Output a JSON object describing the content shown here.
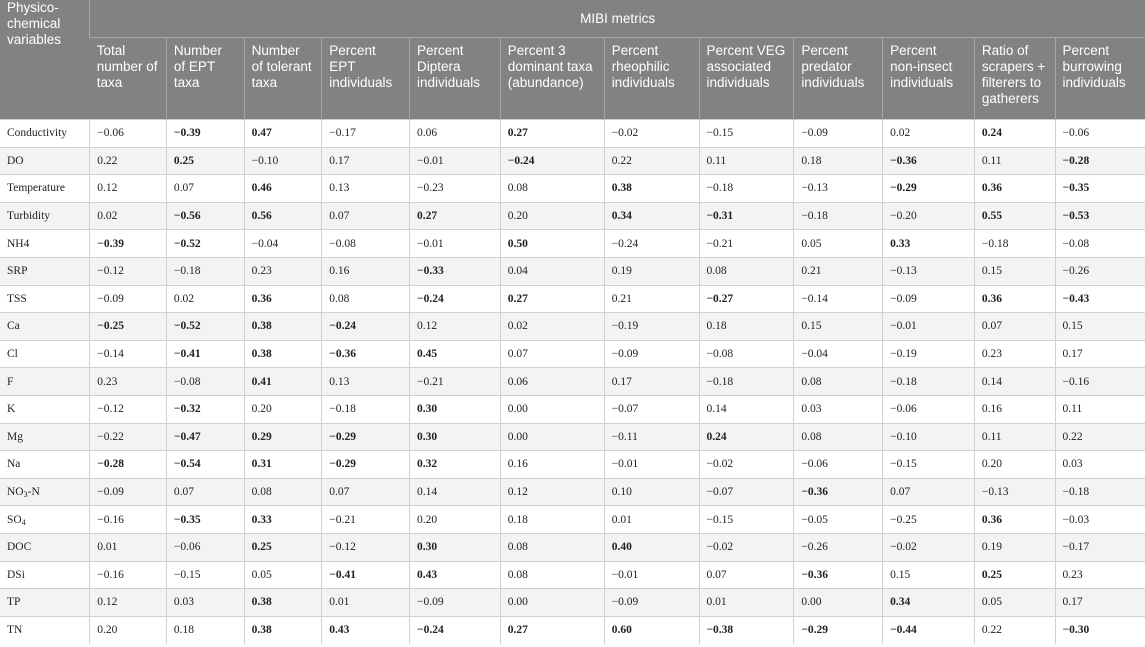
{
  "table": {
    "group_header": "MIBI metrics",
    "row_header": "Physico-chemical variables",
    "columns": [
      "Total number of taxa",
      "Number of EPT taxa",
      "Number of tolerant taxa",
      "Percent EPT individuals",
      "Percent Diptera individuals",
      "Percent 3 dominant taxa (abundance)",
      "Percent rheophilic individuals",
      "Percent VEG associated individuals",
      "Percent predator individuals",
      "Percent non-insect individuals",
      "Ratio of scrapers + filterers to gatherers",
      "Percent burrowing individuals"
    ],
    "rows": [
      {
        "variable": "Conductivity",
        "values": [
          "−0.06",
          "−0.39",
          "0.47",
          "−0.17",
          "0.06",
          "0.27",
          "−0.02",
          "−0.15",
          "−0.09",
          "0.02",
          "0.24",
          "−0.06"
        ],
        "bold": [
          false,
          true,
          true,
          false,
          false,
          true,
          false,
          false,
          false,
          false,
          true,
          false
        ]
      },
      {
        "variable": "DO",
        "values": [
          "0.22",
          "0.25",
          "−0.10",
          "0.17",
          "−0.01",
          "−0.24",
          "0.22",
          "0.11",
          "0.18",
          "−0.36",
          "0.11",
          "−0.28"
        ],
        "bold": [
          false,
          true,
          false,
          false,
          false,
          true,
          false,
          false,
          false,
          true,
          false,
          true
        ]
      },
      {
        "variable": "Temperature",
        "values": [
          "0.12",
          "0.07",
          "0.46",
          "0.13",
          "−0.23",
          "0.08",
          "0.38",
          "−0.18",
          "−0.13",
          "−0.29",
          "0.36",
          "−0.35"
        ],
        "bold": [
          false,
          false,
          true,
          false,
          false,
          false,
          true,
          false,
          false,
          true,
          true,
          true
        ]
      },
      {
        "variable": "Turbidity",
        "values": [
          "0.02",
          "−0.56",
          "0.56",
          "0.07",
          "0.27",
          "0.20",
          "0.34",
          "−0.31",
          "−0.18",
          "−0.20",
          "0.55",
          "−0.53"
        ],
        "bold": [
          false,
          true,
          true,
          false,
          true,
          false,
          true,
          true,
          false,
          false,
          true,
          true
        ]
      },
      {
        "variable": "NH4",
        "values": [
          "−0.39",
          "−0.52",
          "−0.04",
          "−0.08",
          "−0.01",
          "0.50",
          "−0.24",
          "−0.21",
          "0.05",
          "0.33",
          "−0.18",
          "−0.08"
        ],
        "bold": [
          true,
          true,
          false,
          false,
          false,
          true,
          false,
          false,
          false,
          true,
          false,
          false
        ]
      },
      {
        "variable": "SRP",
        "values": [
          "−0.12",
          "−0.18",
          "0.23",
          "0.16",
          "−0.33",
          "0.04",
          "0.19",
          "0.08",
          "0.21",
          "−0.13",
          "0.15",
          "−0.26"
        ],
        "bold": [
          false,
          false,
          false,
          false,
          true,
          false,
          false,
          false,
          false,
          false,
          false,
          false
        ]
      },
      {
        "variable": "TSS",
        "values": [
          "−0.09",
          "0.02",
          "0.36",
          "0.08",
          "−0.24",
          "0.27",
          "0.21",
          "−0.27",
          "−0.14",
          "−0.09",
          "0.36",
          "−0.43"
        ],
        "bold": [
          false,
          false,
          true,
          false,
          true,
          true,
          false,
          true,
          false,
          false,
          true,
          true
        ]
      },
      {
        "variable": "Ca",
        "values": [
          "−0.25",
          "−0.52",
          "0.38",
          "−0.24",
          "0.12",
          "0.02",
          "−0.19",
          "0.18",
          "0.15",
          "−0.01",
          "0.07",
          "0.15"
        ],
        "bold": [
          true,
          true,
          true,
          true,
          false,
          false,
          false,
          false,
          false,
          false,
          false,
          false
        ]
      },
      {
        "variable": "Cl",
        "values": [
          "−0.14",
          "−0.41",
          "0.38",
          "−0.36",
          "0.45",
          "0.07",
          "−0.09",
          "−0.08",
          "−0.04",
          "−0.19",
          "0.23",
          "0.17"
        ],
        "bold": [
          false,
          true,
          true,
          true,
          true,
          false,
          false,
          false,
          false,
          false,
          false,
          false
        ]
      },
      {
        "variable": "F",
        "values": [
          "0.23",
          "−0.08",
          "0.41",
          "0.13",
          "−0.21",
          "0.06",
          "0.17",
          "−0.18",
          "0.08",
          "−0.18",
          "0.14",
          "−0.16"
        ],
        "bold": [
          false,
          false,
          true,
          false,
          false,
          false,
          false,
          false,
          false,
          false,
          false,
          false
        ]
      },
      {
        "variable": "K",
        "values": [
          "−0.12",
          "−0.32",
          "0.20",
          "−0.18",
          "0.30",
          "0.00",
          "−0.07",
          "0.14",
          "0.03",
          "−0.06",
          "0.16",
          "0.11"
        ],
        "bold": [
          false,
          true,
          false,
          false,
          true,
          false,
          false,
          false,
          false,
          false,
          false,
          false
        ]
      },
      {
        "variable": "Mg",
        "values": [
          "−0.22",
          "−0.47",
          "0.29",
          "−0.29",
          "0.30",
          "0.00",
          "−0.11",
          "0.24",
          "0.08",
          "−0.10",
          "0.11",
          "0.22"
        ],
        "bold": [
          false,
          true,
          true,
          true,
          true,
          false,
          false,
          true,
          false,
          false,
          false,
          false
        ]
      },
      {
        "variable": "Na",
        "values": [
          "−0.28",
          "−0.54",
          "0.31",
          "−0.29",
          "0.32",
          "0.16",
          "−0.01",
          "−0.02",
          "−0.06",
          "−0.15",
          "0.20",
          "0.03"
        ],
        "bold": [
          true,
          true,
          true,
          true,
          true,
          false,
          false,
          false,
          false,
          false,
          false,
          false
        ]
      },
      {
        "variable": "NO3-N",
        "var_main": "NO",
        "var_sub": "3",
        "var_tail": "-N",
        "values": [
          "−0.09",
          "0.07",
          "0.08",
          "0.07",
          "0.14",
          "0.12",
          "0.10",
          "−0.07",
          "−0.36",
          "0.07",
          "−0.13",
          "−0.18"
        ],
        "bold": [
          false,
          false,
          false,
          false,
          false,
          false,
          false,
          false,
          true,
          false,
          false,
          false
        ]
      },
      {
        "variable": "SO4",
        "var_main": "SO",
        "var_sub": "4",
        "var_tail": "",
        "values": [
          "−0.16",
          "−0.35",
          "0.33",
          "−0.21",
          "0.20",
          "0.18",
          "0.01",
          "−0.15",
          "−0.05",
          "−0.25",
          "0.36",
          "−0.03"
        ],
        "bold": [
          false,
          true,
          true,
          false,
          false,
          false,
          false,
          false,
          false,
          false,
          true,
          false
        ]
      },
      {
        "variable": "DOC",
        "values": [
          "0.01",
          "−0.06",
          "0.25",
          "−0.12",
          "0.30",
          "0.08",
          "0.40",
          "−0.02",
          "−0.26",
          "−0.02",
          "0.19",
          "−0.17"
        ],
        "bold": [
          false,
          false,
          true,
          false,
          true,
          false,
          true,
          false,
          false,
          false,
          false,
          false
        ]
      },
      {
        "variable": "DSi",
        "values": [
          "−0.16",
          "−0.15",
          "0.05",
          "−0.41",
          "0.43",
          "0.08",
          "−0.01",
          "0.07",
          "−0.36",
          "0.15",
          "0.25",
          "0.23"
        ],
        "bold": [
          false,
          false,
          false,
          true,
          true,
          false,
          false,
          false,
          true,
          false,
          true,
          false
        ]
      },
      {
        "variable": "TP",
        "values": [
          "0.12",
          "0.03",
          "0.38",
          "0.01",
          "−0.09",
          "0.00",
          "−0.09",
          "0.01",
          "0.00",
          "0.34",
          "0.05",
          "0.17"
        ],
        "bold": [
          false,
          false,
          true,
          false,
          false,
          false,
          false,
          false,
          false,
          true,
          false,
          false
        ]
      },
      {
        "variable": "TN",
        "values": [
          "0.20",
          "0.18",
          "0.38",
          "0.43",
          "−0.24",
          "0.27",
          "0.60",
          "−0.38",
          "−0.29",
          "−0.44",
          "0.22",
          "−0.30"
        ],
        "bold": [
          false,
          false,
          true,
          true,
          true,
          true,
          true,
          true,
          true,
          true,
          false,
          true
        ]
      }
    ]
  }
}
